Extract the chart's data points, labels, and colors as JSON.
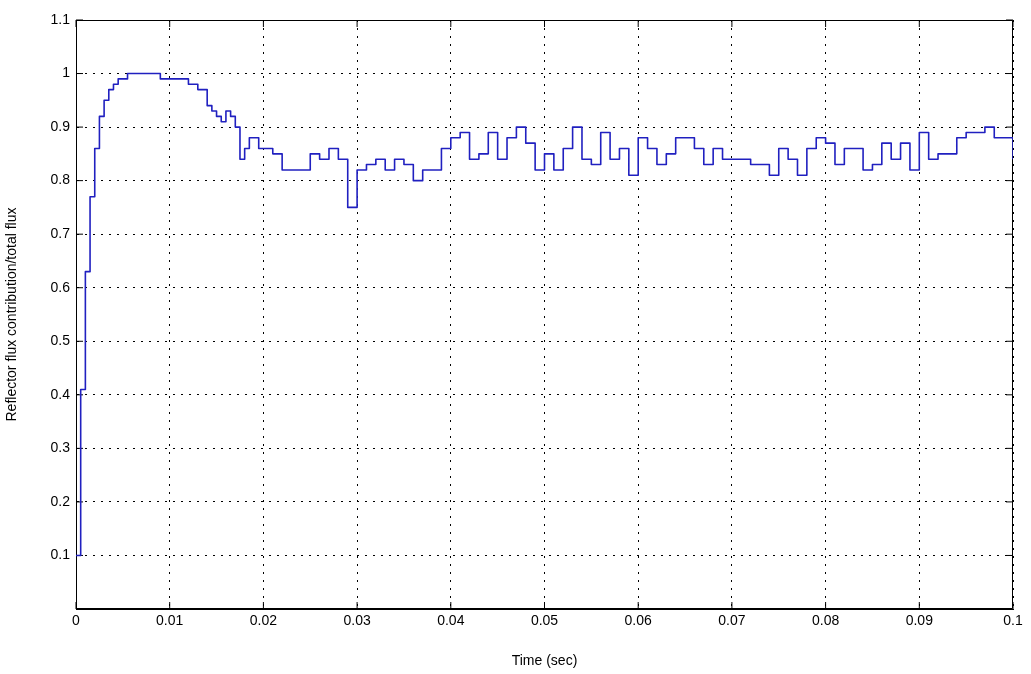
{
  "chart_data": {
    "type": "step",
    "xlabel": "Time (sec)",
    "ylabel": "Reflector flux contribution/total flux",
    "x": [
      0,
      0.0005,
      0.001,
      0.0015,
      0.002,
      0.0025,
      0.003,
      0.0035,
      0.004,
      0.0045,
      0.005,
      0.0055,
      0.006,
      0.0065,
      0.007,
      0.0075,
      0.008,
      0.0085,
      0.009,
      0.0095,
      0.01,
      0.0105,
      0.011,
      0.0115,
      0.012,
      0.0125,
      0.013,
      0.0135,
      0.014,
      0.0145,
      0.015,
      0.0155,
      0.016,
      0.0165,
      0.017,
      0.0175,
      0.018,
      0.0185,
      0.019,
      0.0195,
      0.021,
      0.022,
      0.023,
      0.024,
      0.025,
      0.026,
      0.027,
      0.028,
      0.029,
      0.03,
      0.031,
      0.032,
      0.033,
      0.034,
      0.035,
      0.036,
      0.037,
      0.038,
      0.039,
      0.04,
      0.041,
      0.042,
      0.043,
      0.044,
      0.045,
      0.046,
      0.047,
      0.048,
      0.049,
      0.05,
      0.051,
      0.052,
      0.053,
      0.054,
      0.055,
      0.056,
      0.057,
      0.058,
      0.059,
      0.06,
      0.061,
      0.062,
      0.063,
      0.064,
      0.065,
      0.066,
      0.067,
      0.068,
      0.069,
      0.07,
      0.071,
      0.072,
      0.073,
      0.074,
      0.075,
      0.076,
      0.077,
      0.078,
      0.079,
      0.08,
      0.081,
      0.082,
      0.083,
      0.084,
      0.085,
      0.086,
      0.087,
      0.088,
      0.089,
      0.09,
      0.091,
      0.092,
      0.094,
      0.095,
      0.096,
      0.097,
      0.098,
      0.099,
      0.1
    ],
    "series": [
      {
        "color": "#2020c0",
        "values": [
          0.1,
          0.41,
          0.63,
          0.77,
          0.86,
          0.92,
          0.95,
          0.97,
          0.98,
          0.99,
          0.99,
          1.0,
          1.0,
          1.0,
          1.0,
          1.0,
          1.0,
          1.0,
          0.99,
          0.99,
          0.99,
          0.99,
          0.99,
          0.99,
          0.98,
          0.98,
          0.97,
          0.97,
          0.94,
          0.93,
          0.92,
          0.91,
          0.93,
          0.92,
          0.9,
          0.84,
          0.86,
          0.88,
          0.88,
          0.86,
          0.85,
          0.82,
          0.82,
          0.82,
          0.85,
          0.84,
          0.86,
          0.84,
          0.75,
          0.82,
          0.83,
          0.84,
          0.82,
          0.84,
          0.83,
          0.8,
          0.82,
          0.82,
          0.86,
          0.88,
          0.89,
          0.84,
          0.85,
          0.89,
          0.84,
          0.88,
          0.9,
          0.87,
          0.82,
          0.85,
          0.82,
          0.86,
          0.9,
          0.84,
          0.83,
          0.89,
          0.84,
          0.86,
          0.81,
          0.88,
          0.86,
          0.83,
          0.85,
          0.88,
          0.88,
          0.86,
          0.83,
          0.86,
          0.84,
          0.84,
          0.84,
          0.83,
          0.83,
          0.81,
          0.86,
          0.84,
          0.81,
          0.86,
          0.88,
          0.87,
          0.83,
          0.86,
          0.86,
          0.82,
          0.83,
          0.87,
          0.84,
          0.87,
          0.82,
          0.89,
          0.84,
          0.85,
          0.88,
          0.89,
          0.89,
          0.9,
          0.88,
          0.88,
          0.84
        ]
      }
    ],
    "xlim": [
      0,
      0.1
    ],
    "xticks": [
      0,
      0.01,
      0.02,
      0.03,
      0.04,
      0.05,
      0.06,
      0.07,
      0.08,
      0.09,
      0.1
    ],
    "ylim": [
      0,
      1.1
    ],
    "yticks": [
      0.1,
      0.2,
      0.3,
      0.4,
      0.5,
      0.6,
      0.7,
      0.8,
      0.9,
      1,
      1.1
    ],
    "grid": true,
    "legend": false
  }
}
